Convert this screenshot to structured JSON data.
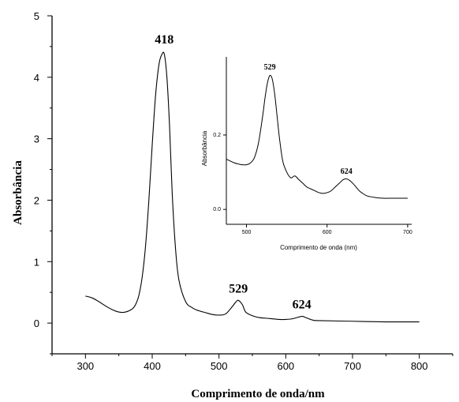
{
  "chart_data": [
    {
      "type": "line",
      "title": "",
      "xlabel": "Comprimento de onda/nm",
      "ylabel": "Absorbância",
      "xlim": [
        250,
        850
      ],
      "ylim": [
        -0.5,
        5
      ],
      "xticks": [
        300,
        400,
        500,
        600,
        700,
        800
      ],
      "yticks": [
        0,
        1,
        2,
        3,
        4,
        5
      ],
      "grid": false,
      "annotations": [
        {
          "text": "418",
          "x": 418,
          "y": 4.42
        },
        {
          "text": "529",
          "x": 529,
          "y": 0.37
        },
        {
          "text": "624",
          "x": 624,
          "y": 0.11
        }
      ],
      "series": [
        {
          "x": [
            300,
            310,
            320,
            330,
            340,
            350,
            360,
            370,
            375,
            380,
            385,
            390,
            395,
            400,
            405,
            410,
            414,
            418,
            422,
            426,
            430,
            435,
            440,
            450,
            460,
            470,
            480,
            490,
            500,
            510,
            520,
            525,
            529,
            535,
            540,
            550,
            560,
            570,
            580,
            590,
            600,
            610,
            620,
            625,
            630,
            640,
            650,
            700,
            750,
            800
          ],
          "y": [
            0.44,
            0.41,
            0.35,
            0.28,
            0.22,
            0.18,
            0.18,
            0.23,
            0.3,
            0.45,
            0.75,
            1.25,
            2.0,
            2.9,
            3.7,
            4.2,
            4.36,
            4.38,
            4.0,
            3.2,
            2.1,
            1.2,
            0.7,
            0.35,
            0.25,
            0.2,
            0.17,
            0.14,
            0.13,
            0.15,
            0.27,
            0.34,
            0.37,
            0.3,
            0.18,
            0.12,
            0.09,
            0.08,
            0.07,
            0.06,
            0.06,
            0.07,
            0.1,
            0.11,
            0.09,
            0.05,
            0.04,
            0.03,
            0.02,
            0.02
          ]
        }
      ]
    },
    {
      "type": "line",
      "title": "",
      "xlabel": "Comprimento de onda (nm)",
      "ylabel": "Absorbância",
      "xlim": [
        475,
        705
      ],
      "ylim": [
        -0.04,
        0.41
      ],
      "xticks": [
        500,
        600,
        700
      ],
      "xtick_labels": [
        "500",
        "600",
        "700"
      ],
      "yticks": [
        0.0,
        0.2
      ],
      "ytick_labels": [
        "0.0",
        "0.2"
      ],
      "grid": false,
      "annotations": [
        {
          "text": "529",
          "x": 529,
          "y": 0.365
        },
        {
          "text": "624",
          "x": 624,
          "y": 0.085
        }
      ],
      "series": [
        {
          "x": [
            475,
            480,
            485,
            490,
            495,
            500,
            505,
            510,
            515,
            520,
            523,
            526,
            529,
            532,
            535,
            538,
            541,
            545,
            550,
            555,
            560,
            565,
            570,
            575,
            580,
            585,
            590,
            595,
            600,
            605,
            610,
            615,
            620,
            624,
            628,
            632,
            636,
            640,
            645,
            650,
            660,
            670,
            680,
            690,
            700
          ],
          "y": [
            0.135,
            0.13,
            0.125,
            0.122,
            0.12,
            0.12,
            0.125,
            0.14,
            0.18,
            0.25,
            0.3,
            0.34,
            0.36,
            0.35,
            0.31,
            0.25,
            0.19,
            0.13,
            0.1,
            0.085,
            0.09,
            0.08,
            0.07,
            0.06,
            0.055,
            0.05,
            0.045,
            0.043,
            0.045,
            0.05,
            0.06,
            0.07,
            0.08,
            0.082,
            0.078,
            0.07,
            0.06,
            0.05,
            0.042,
            0.036,
            0.032,
            0.03,
            0.03,
            0.03,
            0.03
          ]
        }
      ]
    }
  ]
}
